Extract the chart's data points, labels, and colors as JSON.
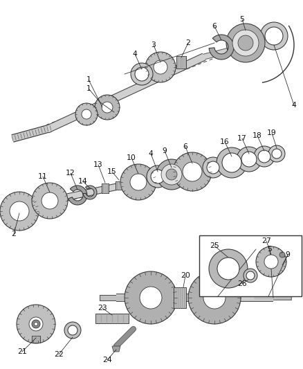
{
  "bg_color": "#ffffff",
  "lc": "#2a2a2a",
  "gc": "#c8c8c8",
  "gc2": "#b0b0b0",
  "gc3": "#989898",
  "figsize": [
    4.38,
    5.33
  ],
  "dpi": 100,
  "shaft_color": "#d0d0d0",
  "edge_color": "#2a2a2a"
}
